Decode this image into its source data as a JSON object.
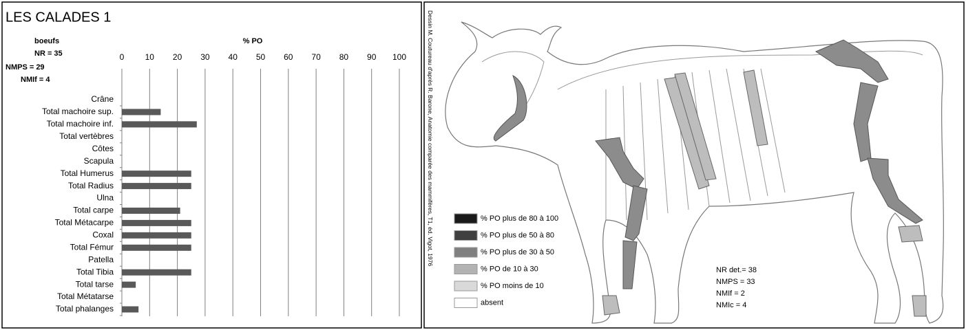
{
  "chart_data": {
    "type": "bar",
    "orientation": "horizontal",
    "title": "LES CALADES 1",
    "stats": [
      "boeufs",
      "NR = 35",
      "NMPS = 29",
      "NMIf = 4"
    ],
    "x_label": "% PO",
    "categories": [
      "Crâne",
      "Total machoire sup.",
      "Total machoire inf.",
      "Total vertèbres",
      "Côtes",
      "Scapula",
      "Total Humerus",
      "Total Radius",
      "Ulna",
      "Total carpe",
      "Total Métacarpe",
      "Coxal",
      "Total Fémur",
      "Patella",
      "Total Tibia",
      "Total tarse",
      "Total Métatarse",
      "Total phalanges"
    ],
    "values": [
      0,
      14,
      27,
      0,
      0,
      0,
      25,
      25,
      0,
      21,
      25,
      25,
      25,
      0,
      25,
      5,
      0,
      6
    ],
    "color": "#595959",
    "xlim": [
      0,
      100
    ],
    "xticks": [
      0,
      10,
      20,
      30,
      40,
      50,
      60,
      70,
      80,
      90,
      100
    ],
    "grid": true
  },
  "diagram": {
    "credit": "Dessin M. Coutureau d'après R. Barone, Anatomie comparée des mammifères, T1, éd. Vigot, 1976",
    "legend": [
      {
        "label": "% PO plus de 80 à 100",
        "color": "#1a1a1a"
      },
      {
        "label": "% PO  plus de 50 à 80",
        "color": "#404040"
      },
      {
        "label": "% PO plus de 30 à 50",
        "color": "#808080"
      },
      {
        "label": "% PO de 10 à 30",
        "color": "#b3b3b3"
      },
      {
        "label": "% PO moins de 10",
        "color": "#d9d9d9"
      },
      {
        "label": "absent",
        "color": "#ffffff"
      }
    ],
    "stats": [
      "NR det.= 38",
      "NMPS = 33",
      "NMIf = 2",
      "NMIc = 4"
    ]
  }
}
